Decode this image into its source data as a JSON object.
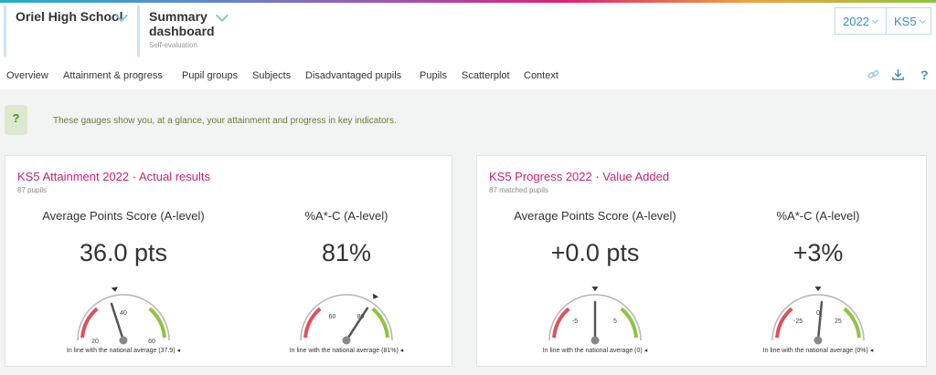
{
  "header": {
    "school": "Oriel High School",
    "view_title_line1": "Summary",
    "view_title_line2": "dashboard",
    "view_subtitle": "Self-evaluation",
    "year": "2022",
    "stage": "KS5"
  },
  "tabs": [
    {
      "label": "Overview",
      "active": true
    },
    {
      "label": "Attainment & progress",
      "active": false
    },
    {
      "label": "Pupil groups",
      "active": false
    },
    {
      "label": "Subjects",
      "active": false
    },
    {
      "label": "Disadvantaged pupils",
      "active": false
    },
    {
      "label": "Pupils",
      "active": false
    },
    {
      "label": "Scatterplot",
      "active": false
    },
    {
      "label": "Context",
      "active": false
    }
  ],
  "tools": {
    "help": "?"
  },
  "info": {
    "icon": "?",
    "text": "These gauges show you, at a glance, your attainment and progress in key indicators."
  },
  "colors": {
    "accent": "#c7227a",
    "low": "#e0505a",
    "high": "#8cc63f",
    "link": "#3b8fc0"
  },
  "panels": [
    {
      "title": "KS5 Attainment 2022 · Actual results",
      "subtitle": "87 pupils",
      "gauges": [
        {
          "label": "Average Points Score (A-level)",
          "value_text": "36.0 pts",
          "value": 36.0,
          "min": 20,
          "max": 60,
          "ticks": [
            "20",
            "40",
            "60"
          ],
          "tick_values": [
            20,
            40,
            60
          ],
          "marker": 37.9,
          "footer": "In line with the national average (37.9)"
        },
        {
          "label": "%A*-C (A-level)",
          "value_text": "81%",
          "value": 81,
          "min": 40,
          "max": 100,
          "ticks": [
            "60",
            "80"
          ],
          "tick_values": [
            60,
            80
          ],
          "marker": 81,
          "footer": "In line with the national average (81%)"
        }
      ]
    },
    {
      "title": "KS5 Progress 2022 · Value Added",
      "subtitle": "87 matched pupils",
      "gauges": [
        {
          "label": "Average Points Score (A-level)",
          "value_text": "+0.0 pts",
          "value": 0,
          "min": -10,
          "max": 10,
          "ticks": [
            "-5",
            "5"
          ],
          "tick_values": [
            -5,
            5
          ],
          "marker": 0,
          "footer": "In line with the national average (0)"
        },
        {
          "label": "%A*-C (A-level)",
          "value_text": "+3%",
          "value": 3,
          "min": -50,
          "max": 50,
          "ticks": [
            "-25",
            "0",
            "25"
          ],
          "tick_values": [
            -25,
            0,
            25
          ],
          "marker": 0,
          "footer": "In line with the national average (0%)"
        }
      ]
    }
  ]
}
